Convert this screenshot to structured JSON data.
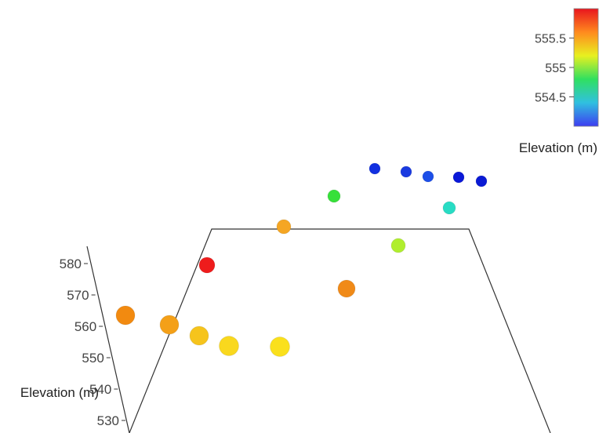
{
  "chart_data": {
    "type": "scatter",
    "projection": "3d",
    "z_axis": {
      "label": "Elevation (m)",
      "ticks": [
        530,
        540,
        550,
        560,
        570,
        580
      ],
      "tick_labels": [
        "530",
        "540",
        "550",
        "560",
        "570",
        "580"
      ],
      "range": [
        527,
        584
      ]
    },
    "colorbar": {
      "title": "Elevation (m)",
      "colormap": "rainbow",
      "range": [
        554.0,
        556.0
      ],
      "ticks": [
        554.5,
        555,
        555.5
      ],
      "tick_labels": [
        "554.5",
        "555",
        "555.5"
      ],
      "colors": [
        "#3d3df0",
        "#30c0e0",
        "#30e060",
        "#e8f020",
        "#ff8a1e",
        "#e8141e"
      ]
    },
    "grid": false,
    "legend": "none",
    "points": [
      {
        "id": "p1",
        "value": 554.1,
        "color": "#1230e0"
      },
      {
        "id": "p2",
        "value": 554.15,
        "color": "#1a3ae0"
      },
      {
        "id": "p3",
        "value": 554.2,
        "color": "#1d4fe8"
      },
      {
        "id": "p4",
        "value": 554.1,
        "color": "#0a18d8"
      },
      {
        "id": "p5",
        "value": 554.05,
        "color": "#0a1ad4"
      },
      {
        "id": "p6",
        "value": 555.1,
        "color": "#37e03a"
      },
      {
        "id": "p7",
        "value": 554.6,
        "color": "#28dcc4"
      },
      {
        "id": "p8",
        "value": 555.8,
        "color": "#f5a623"
      },
      {
        "id": "p9",
        "value": 555.3,
        "color": "#b0ee2e"
      },
      {
        "id": "p10",
        "value": 556.0,
        "color": "#ee1c1c"
      },
      {
        "id": "p11",
        "value": 555.8,
        "color": "#f08a18"
      },
      {
        "id": "p12",
        "value": 555.8,
        "color": "#f28a10"
      },
      {
        "id": "p13",
        "value": 555.75,
        "color": "#f4a018"
      },
      {
        "id": "p14",
        "value": 555.65,
        "color": "#f6c41c"
      },
      {
        "id": "p15",
        "value": 555.55,
        "color": "#f9d81e"
      },
      {
        "id": "p16",
        "value": 555.5,
        "color": "#fae01c"
      }
    ]
  }
}
